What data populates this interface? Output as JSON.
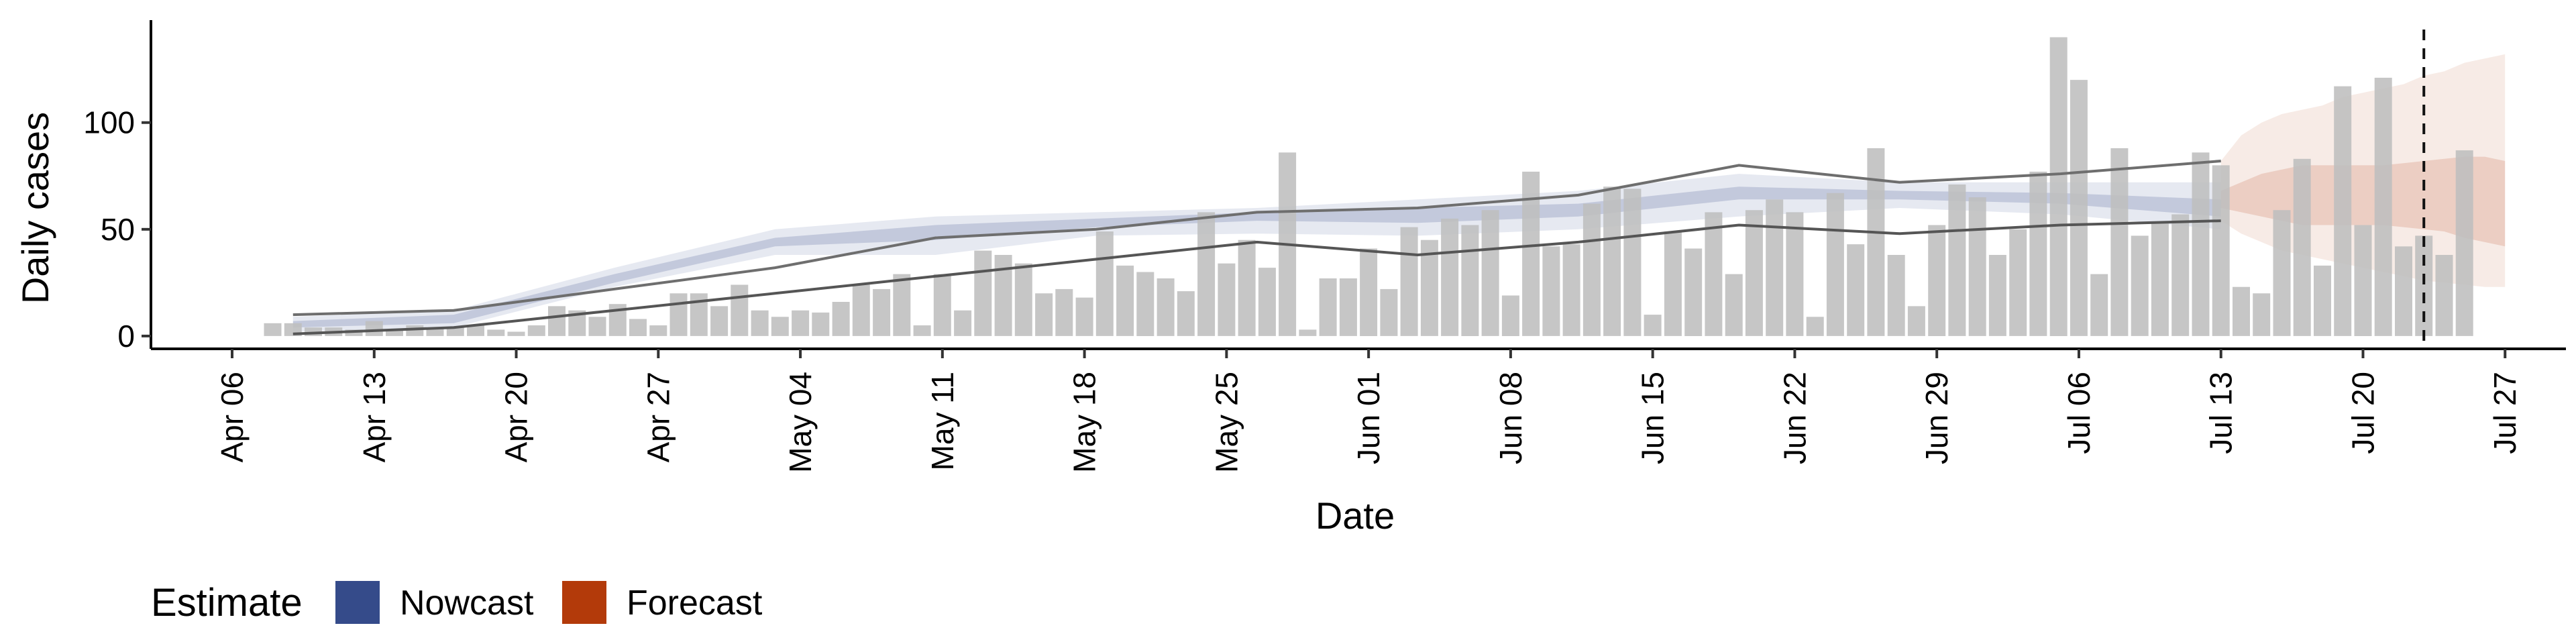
{
  "chart_data": {
    "type": "bar",
    "xlabel": "Date",
    "ylabel": "Daily cases",
    "x_range": [
      "2020-04-02",
      "2020-07-30"
    ],
    "ylim": [
      -6,
      148
    ],
    "y_ticks": [
      0,
      50,
      100
    ],
    "x_ticks": [
      {
        "date": "2020-04-06",
        "label": "Apr 06"
      },
      {
        "date": "2020-04-13",
        "label": "Apr 13"
      },
      {
        "date": "2020-04-20",
        "label": "Apr 20"
      },
      {
        "date": "2020-04-27",
        "label": "Apr 27"
      },
      {
        "date": "2020-05-04",
        "label": "May 04"
      },
      {
        "date": "2020-05-11",
        "label": "May 11"
      },
      {
        "date": "2020-05-18",
        "label": "May 18"
      },
      {
        "date": "2020-05-25",
        "label": "May 25"
      },
      {
        "date": "2020-06-01",
        "label": "Jun 01"
      },
      {
        "date": "2020-06-08",
        "label": "Jun 08"
      },
      {
        "date": "2020-06-15",
        "label": "Jun 15"
      },
      {
        "date": "2020-06-22",
        "label": "Jun 22"
      },
      {
        "date": "2020-06-29",
        "label": "Jun 29"
      },
      {
        "date": "2020-07-06",
        "label": "Jul 06"
      },
      {
        "date": "2020-07-13",
        "label": "Jul 13"
      },
      {
        "date": "2020-07-20",
        "label": "Jul 20"
      },
      {
        "date": "2020-07-27",
        "label": "Jul 27"
      }
    ],
    "grid": false,
    "legend": {
      "title": "Estimate",
      "position": "bottom-left",
      "entries": [
        {
          "name": "Nowcast",
          "color": "#354b8a"
        },
        {
          "name": "Forecast",
          "color": "#b33a0a"
        }
      ]
    },
    "colors": {
      "bars": "#bebebe",
      "nowcast": "#354b8a",
      "forecast": "#b33a0a",
      "outline": "#6e6e6e"
    },
    "cases": {
      "start_date": "2020-04-08",
      "values": [
        6,
        6,
        4,
        4,
        3,
        7,
        3,
        5,
        4,
        4,
        5,
        3,
        2,
        5,
        14,
        12,
        9,
        15,
        8,
        5,
        20,
        20,
        14,
        24,
        12,
        9,
        12,
        11,
        16,
        24,
        22,
        29,
        5,
        29,
        12,
        40,
        38,
        34,
        20,
        22,
        18,
        49,
        33,
        30,
        27,
        21,
        58,
        34,
        45,
        32,
        86,
        3,
        27,
        27,
        41,
        22,
        51,
        45,
        55,
        52,
        59,
        19,
        77,
        42,
        43,
        62,
        70,
        69,
        10,
        49,
        41,
        58,
        29,
        59,
        64,
        58,
        9,
        67,
        43,
        88,
        38,
        14,
        52,
        71,
        65,
        38,
        50,
        77,
        140,
        120,
        29,
        88,
        47,
        53,
        57,
        86,
        80,
        23,
        20,
        59,
        83,
        33,
        117,
        52,
        121,
        42,
        47,
        38,
        87
      ]
    },
    "nowcast": {
      "start_date": "2020-04-09",
      "end_date": "2020-07-13",
      "outer_lower": [
        2,
        4,
        23,
        38,
        38,
        47,
        48,
        47,
        50,
        56,
        60,
        57,
        50
      ],
      "inner_lower": [
        4,
        6,
        25,
        42,
        45,
        51,
        54,
        53,
        56,
        64,
        64,
        62,
        56
      ],
      "median": [
        6,
        8,
        27,
        44,
        48,
        53,
        56,
        56,
        59,
        67,
        66,
        64,
        60
      ],
      "inner_upper": [
        7,
        10,
        29,
        46,
        52,
        55,
        58,
        60,
        62,
        70,
        68,
        67,
        64
      ],
      "outer_upper": [
        9,
        12,
        32,
        50,
        56,
        58,
        60,
        64,
        68,
        76,
        72,
        72,
        72
      ],
      "upper_line": [
        10,
        12,
        22,
        32,
        46,
        50,
        58,
        60,
        66,
        80,
        72,
        76,
        82
      ],
      "lower_line": [
        1,
        4,
        12,
        20,
        28,
        36,
        44,
        38,
        44,
        52,
        48,
        52,
        54
      ]
    },
    "forecast": {
      "start_date": "2020-07-13",
      "end_date": "2020-07-27",
      "outer_lower": [
        54,
        48,
        44,
        40,
        38,
        36,
        34,
        32,
        30,
        28,
        26,
        25,
        24,
        23,
        23
      ],
      "inner_lower": [
        60,
        58,
        56,
        54,
        52,
        52,
        52,
        52,
        52,
        51,
        50,
        49,
        46,
        44,
        42
      ],
      "inner_upper": [
        68,
        72,
        76,
        78,
        80,
        80,
        80,
        80,
        80,
        81,
        82,
        83,
        84,
        84,
        82
      ],
      "outer_upper": [
        82,
        94,
        100,
        104,
        106,
        108,
        112,
        114,
        116,
        118,
        122,
        124,
        128,
        130,
        132
      ]
    },
    "annotations": [
      {
        "type": "vline",
        "date": "2020-07-23",
        "style": "dashed"
      }
    ]
  }
}
